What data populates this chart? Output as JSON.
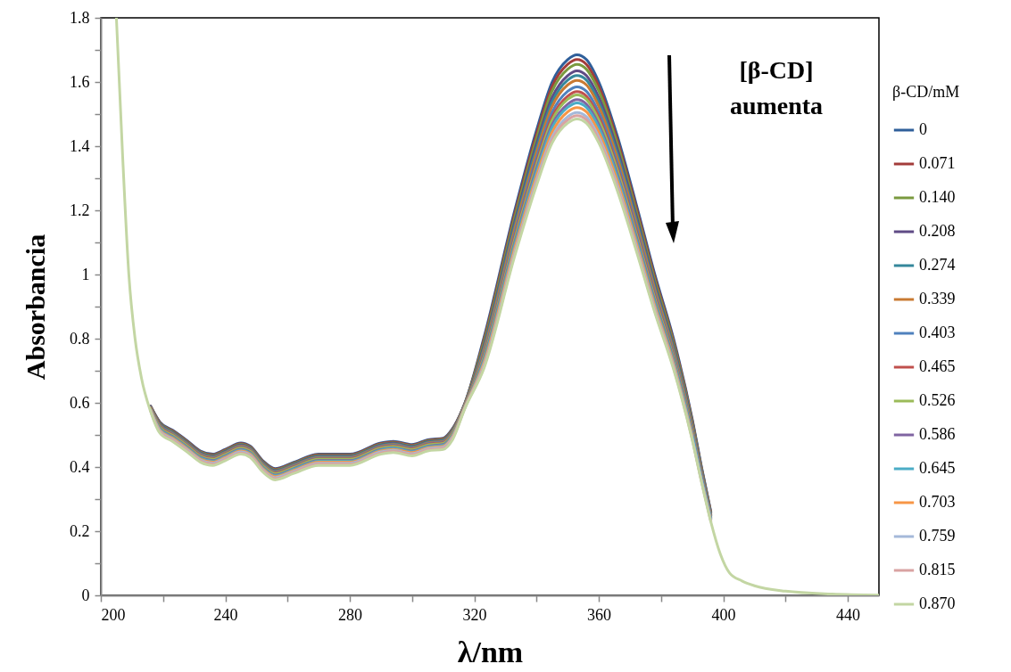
{
  "chart_data": {
    "type": "line",
    "xlabel": "λ/nm",
    "ylabel": "Absorbancia",
    "legend_title": "β-CD/mM",
    "legend": "right",
    "line_style": "solid",
    "annotations": [
      "[β-CD]\naumenta"
    ],
    "xlim": [
      200,
      450
    ],
    "ylim": [
      0,
      1.8
    ],
    "xticks": [
      200,
      {
        "value": 220,
        "label": null
      },
      240,
      {
        "value": 260,
        "label": null
      },
      280,
      {
        "value": 300,
        "label": null
      },
      320,
      {
        "value": 340,
        "label": null
      },
      360,
      {
        "value": 380,
        "label": null
      },
      400,
      {
        "value": 420,
        "label": null
      },
      440
    ],
    "yticks": [
      0,
      {
        "value": 0.1,
        "label": null
      },
      0.2,
      {
        "value": 0.3,
        "label": null
      },
      0.4,
      {
        "value": 0.5,
        "label": null
      },
      0.6,
      {
        "value": 0.7,
        "label": null
      },
      0.8,
      {
        "value": 0.9,
        "label": null
      },
      1,
      {
        "value": 1.1,
        "label": null
      },
      1.2,
      {
        "value": 1.3,
        "label": null
      },
      1.4,
      {
        "value": 1.5,
        "label": null
      },
      1.6,
      {
        "value": 1.7,
        "label": null
      },
      1.8
    ],
    "x": [
      205,
      207,
      209,
      211,
      213,
      216,
      219,
      223,
      228,
      232,
      236,
      240,
      245,
      248,
      252,
      256,
      262,
      270,
      280,
      290,
      294,
      300,
      305,
      310,
      313,
      317,
      323,
      333,
      340,
      345,
      350,
      353,
      356,
      360,
      366,
      372,
      378,
      384,
      390,
      393,
      396,
      399,
      402,
      406,
      410,
      420,
      435,
      450
    ],
    "series": [
      {
        "name": "0",
        "color": "#2f5f9a",
        "values": [
          null,
          null,
          null,
          null,
          null,
          0.59,
          0.54,
          0.515,
          0.48,
          0.45,
          0.44,
          0.455,
          0.475,
          0.465,
          0.42,
          0.395,
          0.415,
          0.44,
          0.44,
          0.475,
          0.48,
          0.47,
          0.485,
          0.49,
          0.52,
          0.6,
          0.8,
          1.2,
          1.45,
          1.6,
          1.67,
          1.685,
          1.67,
          1.6,
          1.43,
          1.22,
          1.0,
          0.8,
          0.55,
          0.4,
          0.26,
          null,
          null,
          null,
          null,
          null,
          null,
          null
        ]
      },
      {
        "name": "0.071",
        "color": "#a33c3a",
        "values": [
          null,
          null,
          null,
          null,
          null,
          0.589,
          0.538,
          0.513,
          0.478,
          0.448,
          0.438,
          0.453,
          0.473,
          0.463,
          0.418,
          0.393,
          0.413,
          0.438,
          0.438,
          0.473,
          0.478,
          0.468,
          0.483,
          0.488,
          0.518,
          0.599,
          0.793,
          1.189,
          1.437,
          1.586,
          1.655,
          1.67,
          1.655,
          1.586,
          1.417,
          1.209,
          0.991,
          0.793,
          0.545,
          0.396,
          0.258,
          null,
          null,
          null,
          null,
          null,
          null,
          null
        ]
      },
      {
        "name": "0.140",
        "color": "#7a9a3f",
        "values": [
          null,
          null,
          null,
          null,
          null,
          0.588,
          0.536,
          0.511,
          0.476,
          0.446,
          0.436,
          0.451,
          0.471,
          0.461,
          0.416,
          0.391,
          0.411,
          0.436,
          0.436,
          0.471,
          0.476,
          0.466,
          0.481,
          0.486,
          0.516,
          0.598,
          0.786,
          1.179,
          1.424,
          1.572,
          1.64,
          1.655,
          1.64,
          1.572,
          1.405,
          1.198,
          0.982,
          0.786,
          0.54,
          0.393,
          0.255,
          null,
          null,
          null,
          null,
          null,
          null,
          null
        ]
      },
      {
        "name": "0.208",
        "color": "#5f4a85",
        "values": [
          null,
          null,
          null,
          null,
          null,
          0.587,
          0.534,
          0.509,
          0.474,
          0.444,
          0.434,
          0.449,
          0.469,
          0.459,
          0.414,
          0.389,
          0.409,
          0.434,
          0.434,
          0.469,
          0.474,
          0.464,
          0.479,
          0.484,
          0.514,
          0.597,
          0.776,
          1.164,
          1.407,
          1.552,
          1.62,
          1.635,
          1.62,
          1.552,
          1.388,
          1.184,
          0.97,
          0.776,
          0.534,
          0.388,
          0.252,
          null,
          null,
          null,
          null,
          null,
          null,
          null
        ]
      },
      {
        "name": "0.274",
        "color": "#35879b",
        "values": [
          null,
          null,
          null,
          null,
          null,
          0.586,
          0.532,
          0.507,
          0.472,
          0.442,
          0.432,
          0.447,
          0.467,
          0.457,
          0.412,
          0.387,
          0.407,
          0.432,
          0.432,
          0.467,
          0.472,
          0.462,
          0.477,
          0.482,
          0.512,
          0.596,
          0.769,
          1.154,
          1.394,
          1.538,
          1.606,
          1.62,
          1.606,
          1.538,
          1.375,
          1.173,
          0.961,
          0.769,
          0.529,
          0.385,
          0.25,
          null,
          null,
          null,
          null,
          null,
          null,
          null
        ]
      },
      {
        "name": "0.339",
        "color": "#c97a32",
        "values": [
          null,
          null,
          null,
          null,
          null,
          0.585,
          0.53,
          0.505,
          0.47,
          0.44,
          0.43,
          0.445,
          0.465,
          0.455,
          0.41,
          0.385,
          0.405,
          0.43,
          0.43,
          0.465,
          0.47,
          0.46,
          0.475,
          0.48,
          0.51,
          0.595,
          0.762,
          1.143,
          1.381,
          1.524,
          1.591,
          1.605,
          1.591,
          1.524,
          1.362,
          1.162,
          0.953,
          0.762,
          0.524,
          0.381,
          0.248,
          null,
          null,
          null,
          null,
          null,
          null,
          null
        ]
      },
      {
        "name": "0.403",
        "color": "#4f81bd",
        "values": [
          null,
          null,
          null,
          null,
          null,
          0.584,
          0.528,
          0.503,
          0.468,
          0.438,
          0.428,
          0.443,
          0.463,
          0.453,
          0.408,
          0.383,
          0.403,
          0.428,
          0.428,
          0.463,
          0.468,
          0.458,
          0.473,
          0.478,
          0.508,
          0.594,
          0.753,
          1.129,
          1.364,
          1.505,
          1.571,
          1.585,
          1.571,
          1.505,
          1.345,
          1.148,
          0.941,
          0.753,
          0.517,
          0.376,
          0.245,
          null,
          null,
          null,
          null,
          null,
          null,
          null
        ]
      },
      {
        "name": "0.465",
        "color": "#c0504d",
        "values": [
          null,
          null,
          null,
          null,
          null,
          0.583,
          0.526,
          0.501,
          0.466,
          0.436,
          0.426,
          0.441,
          0.461,
          0.451,
          0.406,
          0.381,
          0.401,
          0.426,
          0.426,
          0.461,
          0.466,
          0.456,
          0.471,
          0.476,
          0.506,
          0.593,
          0.745,
          1.118,
          1.351,
          1.491,
          1.556,
          1.57,
          1.556,
          1.491,
          1.332,
          1.137,
          0.932,
          0.745,
          0.512,
          0.373,
          0.242,
          null,
          null,
          null,
          null,
          null,
          null,
          null
        ]
      },
      {
        "name": "0.526",
        "color": "#9bbb59",
        "values": [
          null,
          null,
          null,
          null,
          null,
          0.582,
          0.524,
          0.499,
          0.464,
          0.434,
          0.424,
          0.439,
          0.459,
          0.449,
          0.404,
          0.379,
          0.399,
          0.424,
          0.424,
          0.459,
          0.464,
          0.454,
          0.469,
          0.474,
          0.504,
          0.592,
          0.741,
          1.111,
          1.342,
          1.481,
          1.546,
          1.56,
          1.546,
          1.481,
          1.324,
          1.129,
          0.926,
          0.741,
          0.509,
          0.37,
          0.241,
          null,
          null,
          null,
          null,
          null,
          null,
          null
        ]
      },
      {
        "name": "0.586",
        "color": "#8064a2",
        "values": [
          null,
          null,
          null,
          null,
          null,
          0.58,
          0.52,
          0.495,
          0.46,
          0.43,
          0.42,
          0.435,
          0.455,
          0.445,
          0.4,
          0.375,
          0.395,
          0.42,
          0.42,
          0.455,
          0.46,
          0.45,
          0.465,
          0.47,
          0.5,
          0.59,
          0.734,
          1.1,
          1.33,
          1.467,
          1.531,
          1.545,
          1.531,
          1.467,
          1.311,
          1.119,
          0.917,
          0.734,
          0.504,
          0.367,
          0.238,
          null,
          null,
          null,
          null,
          null,
          null,
          null
        ]
      },
      {
        "name": "0.645",
        "color": "#4bacc6",
        "values": [
          null,
          null,
          null,
          null,
          null,
          0.579,
          0.518,
          0.493,
          0.458,
          0.428,
          0.418,
          0.433,
          0.453,
          0.443,
          0.398,
          0.373,
          0.393,
          0.418,
          0.418,
          0.453,
          0.458,
          0.448,
          0.463,
          0.468,
          0.498,
          0.589,
          0.729,
          1.093,
          1.321,
          1.458,
          1.521,
          1.535,
          1.521,
          1.458,
          1.303,
          1.111,
          0.911,
          0.729,
          0.501,
          0.364,
          0.237,
          null,
          null,
          null,
          null,
          null,
          null,
          null
        ]
      },
      {
        "name": "0.703",
        "color": "#f79646",
        "values": [
          null,
          null,
          null,
          null,
          null,
          0.578,
          0.515,
          0.49,
          0.455,
          0.425,
          0.415,
          0.43,
          0.45,
          0.44,
          0.395,
          0.37,
          0.39,
          0.415,
          0.415,
          0.45,
          0.455,
          0.445,
          0.46,
          0.465,
          0.495,
          0.588,
          0.722,
          1.083,
          1.308,
          1.443,
          1.507,
          1.52,
          1.507,
          1.443,
          1.29,
          1.101,
          0.902,
          0.722,
          0.496,
          null,
          null,
          null,
          null,
          null,
          null,
          null,
          null,
          null
        ]
      },
      {
        "name": "0.759",
        "color": "#a5b9d9",
        "values": [
          null,
          null,
          null,
          null,
          null,
          0.576,
          0.512,
          0.487,
          0.452,
          0.422,
          0.412,
          0.427,
          0.447,
          0.437,
          0.392,
          0.367,
          0.387,
          0.412,
          0.412,
          0.447,
          0.452,
          0.442,
          0.457,
          0.462,
          0.492,
          0.586,
          0.715,
          1.072,
          1.295,
          1.429,
          1.492,
          1.505,
          1.492,
          1.429,
          1.277,
          1.09,
          0.893,
          0.715,
          0.491,
          0.357,
          0.232,
          null,
          null,
          null,
          null,
          null,
          null,
          null
        ]
      },
      {
        "name": "0.815",
        "color": "#d9a3a2",
        "values": [
          null,
          null,
          null,
          null,
          null,
          0.575,
          0.509,
          0.484,
          0.449,
          0.419,
          0.409,
          0.424,
          0.444,
          0.434,
          0.389,
          0.364,
          0.384,
          0.409,
          0.409,
          0.444,
          0.449,
          0.439,
          0.454,
          0.459,
          0.489,
          0.585,
          0.71,
          1.065,
          1.286,
          1.42,
          1.482,
          1.495,
          1.482,
          1.42,
          1.269,
          1.082,
          0.887,
          0.71,
          0.488,
          0.355,
          0.231,
          null,
          null,
          null,
          null,
          null,
          null,
          null
        ]
      },
      {
        "name": "0.870",
        "color": "#c3d6a3",
        "values": [
          1.8,
          1.37,
          1.0,
          0.8,
          0.68,
          0.573,
          0.505,
          0.48,
          0.445,
          0.415,
          0.405,
          0.42,
          0.44,
          0.43,
          0.385,
          0.36,
          0.38,
          0.405,
          0.405,
          0.44,
          0.445,
          0.435,
          0.45,
          0.455,
          0.485,
          0.583,
          0.705,
          1.058,
          1.278,
          1.41,
          1.472,
          1.485,
          1.472,
          1.41,
          1.26,
          1.075,
          0.881,
          0.705,
          0.485,
          0.353,
          0.229,
          0.13,
          0.07,
          0.045,
          0.03,
          0.013,
          0.004,
          0.001
        ]
      }
    ]
  }
}
